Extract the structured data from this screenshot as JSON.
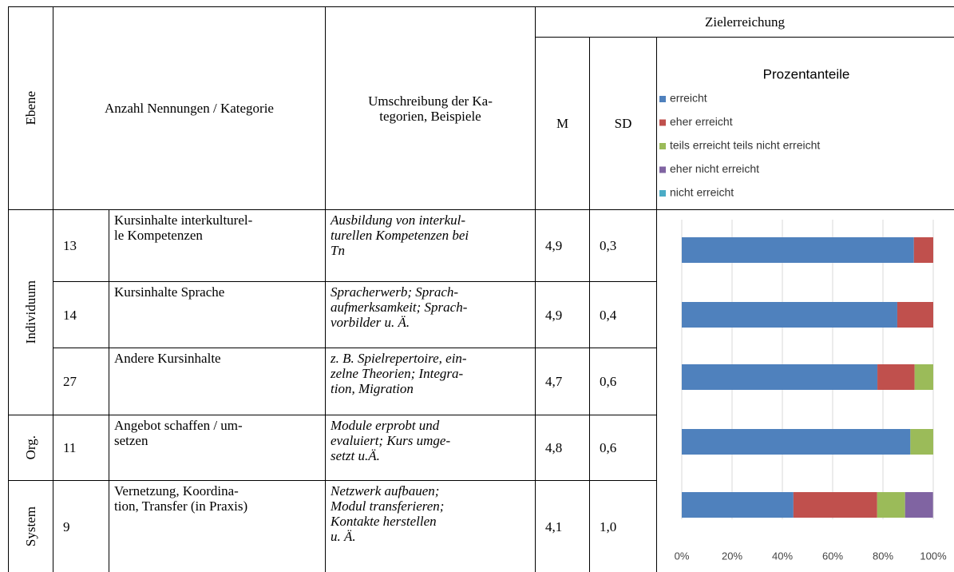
{
  "header": {
    "ebene": "Ebene",
    "anzahl": "Anzahl Nennungen / Kategorie",
    "umschreibung": "Umschreibung der Ka-\ntegorien, Beispiele",
    "zielerreichung": "Zielerreichung",
    "m": "M",
    "sd": "SD"
  },
  "groups": [
    {
      "label": "Individuum"
    },
    {
      "label": "Org."
    },
    {
      "label": "System"
    }
  ],
  "table": {
    "rows": [
      [
        "13",
        "Kursinhalte interkulturel-\nle Kompetenzen",
        "Ausbildung von interkul-\nturellen Kompetenzen bei\nTn",
        "4,9",
        "0,3"
      ],
      [
        "14",
        "Kursinhalte Sprache",
        "Spracherwerb; Sprach-\naufmerksamkeit; Sprach-\nvorbilder u. Ä.",
        "4,9",
        "0,4"
      ],
      [
        "27",
        "Andere Kursinhalte",
        "z. B. Spielrepertoire, ein-\nzelne Theorien; Integra-\ntion, Migration",
        "4,7",
        "0,6"
      ],
      [
        "11",
        "Angebot schaffen / um-\nsetzen",
        "Module erprobt und\nevaluiert; Kurs umge-\nsetzt u.Ä.",
        "4,8",
        "0,6"
      ],
      [
        "9",
        "Vernetzung, Koordina-\ntion, Transfer (in Praxis)",
        "Netzwerk aufbauen;\nModul transferieren;\nKontakte herstellen\nu. Ä.",
        "4,1",
        "1,0"
      ]
    ]
  },
  "chart_data": {
    "type": "stacked_bar",
    "orientation": "horizontal",
    "title": "Prozentanteile",
    "series": [
      {
        "name": "erreicht",
        "color": "#4f81bd",
        "values": [
          92.3,
          85.7,
          77.8,
          90.9,
          44.4
        ]
      },
      {
        "name": "eher erreicht",
        "color": "#c0504d",
        "values": [
          7.7,
          14.3,
          14.8,
          0,
          33.3
        ]
      },
      {
        "name": "teils erreicht teils nicht erreicht",
        "color": "#9bbb59",
        "values": [
          0,
          0,
          7.4,
          9.1,
          11.1
        ]
      },
      {
        "name": "eher nicht erreicht",
        "color": "#8064a2",
        "values": [
          0,
          0,
          0,
          0,
          11.1
        ]
      },
      {
        "name": "nicht erreicht",
        "color": "#4bacc6",
        "values": [
          0,
          0,
          0,
          0,
          0
        ]
      }
    ],
    "xlim": [
      0,
      100
    ],
    "xticks": [
      {
        "value": 0,
        "label": "0%"
      },
      {
        "value": 20,
        "label": "20%"
      },
      {
        "value": 40,
        "label": "40%"
      },
      {
        "value": 60,
        "label": "60%"
      },
      {
        "value": 80,
        "label": "80%"
      },
      {
        "value": 100,
        "label": "100%"
      }
    ],
    "grid": true
  }
}
